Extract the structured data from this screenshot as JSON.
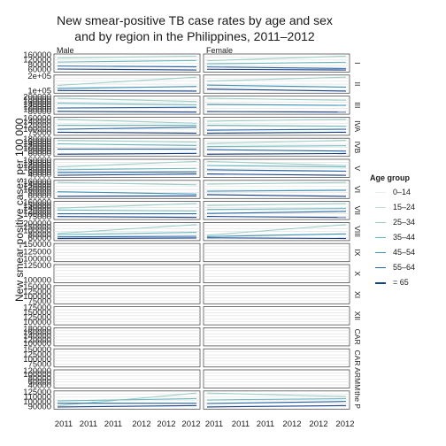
{
  "chart_data": {
    "type": "line",
    "title_line1": "New smear-positive TB case rates by age and sex",
    "title_line2": "and by region in the Philippines, 2011–2012",
    "ylabel": "New smear-positive cases per 100 000",
    "xlabel": "",
    "x_tick_labels": [
      "2011",
      "2011",
      "2011",
      "2012",
      "2012",
      "2012"
    ],
    "columns": [
      "Male",
      "Female"
    ],
    "rows": [
      "I",
      "II",
      "III",
      "IVA",
      "IVB",
      "V",
      "VI",
      "VII",
      "VIII",
      "IX",
      "X",
      "XI",
      "XII",
      "CAR",
      "CAR",
      "ARMM",
      "the P"
    ],
    "row_ticks": [
      [
        "160000",
        "120000",
        "80000",
        "60000"
      ],
      [
        "2e+05",
        "1e+05"
      ],
      [
        "200000",
        "180000",
        "160000",
        "140000",
        "120000",
        "100000",
        "80000"
      ],
      [
        "160000",
        "140000",
        "120000",
        "100000",
        "75000"
      ],
      [
        "180000",
        "160000",
        "140000",
        "120000",
        "100000",
        "80000",
        "60000"
      ],
      [
        "160000",
        "140000",
        "120000",
        "100000",
        "80000",
        "60000",
        "40000"
      ],
      [
        "160000",
        "140000",
        "120000",
        "100000",
        "80000",
        "60000"
      ],
      [
        "160000",
        "150000",
        "140000",
        "120000",
        "100000",
        "75000"
      ],
      [
        "200000",
        "150000",
        "100000",
        "80000",
        "60000"
      ],
      [
        "150000",
        "125000",
        "100000"
      ],
      [
        "125000",
        "100000"
      ],
      [
        "150000",
        "125000",
        "100000",
        "75000"
      ],
      [
        "175000",
        "150000",
        "125000",
        "100000"
      ],
      [
        "180000",
        "160000",
        "140000",
        "120000",
        "100000"
      ],
      [
        "150000",
        "125000",
        "100000",
        "75000"
      ],
      [
        "120000",
        "100000",
        "80000",
        "60000",
        "40000"
      ],
      [
        "125000",
        "110000",
        "100000",
        "90000"
      ]
    ],
    "legend": {
      "title": "Age group",
      "items": [
        "0–14",
        "15–24",
        "25–34",
        "35–44",
        "45–54",
        "55–64",
        "= 65"
      ]
    },
    "colors": [
      "#e3f0ef",
      "#c6e1dd",
      "#9ccfc6",
      "#6bb8c0",
      "#3d93b9",
      "#2767a6",
      "#163f86"
    ],
    "series": [
      {
        "row": "I",
        "col": "Male",
        "values": [
          [
            140000,
            150000
          ],
          [
            120000,
            128000
          ],
          [
            100000,
            96000
          ],
          [
            85000,
            80000
          ]
        ]
      },
      {
        "row": "I",
        "col": "Female",
        "values": [
          [
            130000,
            160000
          ],
          [
            110000,
            120000
          ],
          [
            90000,
            80000
          ],
          [
            75000,
            70000
          ]
        ]
      },
      {
        "row": "II",
        "col": "Male",
        "values": [
          [
            150000,
            230000
          ],
          [
            120000,
            140000
          ],
          [
            100000,
            95000
          ]
        ]
      },
      {
        "row": "II",
        "col": "Female",
        "values": [
          [
            130000,
            150000
          ],
          [
            110000,
            100000
          ],
          [
            90000,
            80000
          ]
        ]
      },
      {
        "row": "III",
        "col": "Male",
        "values": [
          [
            180000,
            160000
          ],
          [
            150000,
            140000
          ],
          [
            120000,
            125000
          ],
          [
            100000,
            95000
          ]
        ]
      },
      {
        "row": "III",
        "col": "Female",
        "values": [
          [
            160000,
            150000
          ],
          [
            130000,
            125000
          ],
          [
            95000,
            92000
          ]
        ]
      },
      {
        "row": "IVA",
        "col": "Male",
        "values": [
          [
            150000,
            130000
          ],
          [
            120000,
            120000
          ],
          [
            100000,
            110000
          ],
          [
            85000,
            80000
          ]
        ]
      },
      {
        "row": "IVA",
        "col": "Female",
        "values": [
          [
            140000,
            150000
          ],
          [
            120000,
            115000
          ],
          [
            95000,
            100000
          ],
          [
            80000,
            85000
          ]
        ]
      },
      {
        "row": "IVB",
        "col": "Male",
        "values": [
          [
            160000,
            150000
          ],
          [
            140000,
            130000
          ],
          [
            110000,
            110000
          ],
          [
            80000,
            85000
          ]
        ]
      },
      {
        "row": "IVB",
        "col": "Female",
        "values": [
          [
            150000,
            170000
          ],
          [
            130000,
            135000
          ],
          [
            110000,
            100000
          ],
          [
            80000,
            85000
          ]
        ]
      },
      {
        "row": "V",
        "col": "Male",
        "values": [
          [
            120000,
            160000
          ],
          [
            100000,
            110000
          ],
          [
            80000,
            85000
          ],
          [
            60000,
            70000
          ]
        ]
      },
      {
        "row": "V",
        "col": "Female",
        "values": [
          [
            160000,
            130000
          ],
          [
            130000,
            120000
          ],
          [
            100000,
            90000
          ],
          [
            70000,
            60000
          ]
        ]
      },
      {
        "row": "VI",
        "col": "Male",
        "values": [
          [
            150000,
            140000
          ],
          [
            110000,
            100000
          ],
          [
            90000,
            92000
          ]
        ]
      },
      {
        "row": "VI",
        "col": "Female",
        "values": [
          [
            140000,
            150000
          ],
          [
            100000,
            105000
          ],
          [
            80000,
            70000
          ]
        ]
      },
      {
        "row": "VII",
        "col": "Male",
        "values": [
          [
            130000,
            155000
          ],
          [
            120000,
            115000
          ],
          [
            100000,
            100000
          ],
          [
            85000,
            80000
          ]
        ]
      },
      {
        "row": "VII",
        "col": "Female",
        "values": [
          [
            140000,
            150000
          ],
          [
            120000,
            125000
          ],
          [
            100000,
            110000
          ],
          [
            85000,
            80000
          ]
        ]
      },
      {
        "row": "VIII",
        "col": "Male",
        "values": [
          [
            110000,
            190000
          ],
          [
            100000,
            120000
          ],
          [
            80000,
            85000
          ],
          [
            65000,
            70000
          ]
        ]
      },
      {
        "row": "VIII",
        "col": "Female",
        "values": [
          [
            100000,
            180000
          ],
          [
            90000,
            110000
          ],
          [
            80000,
            75000
          ]
        ]
      },
      {
        "row": "the P",
        "col": "Male",
        "values": [
          [
            95000,
            122000
          ],
          [
            105000,
            110000
          ],
          [
            100000,
            100000
          ],
          [
            92000,
            95000
          ]
        ]
      },
      {
        "row": "the P",
        "col": "Female",
        "values": [
          [
            110000,
            105000
          ],
          [
            100000,
            102000
          ],
          [
            95000,
            98000
          ],
          [
            90000,
            92000
          ]
        ]
      }
    ]
  }
}
